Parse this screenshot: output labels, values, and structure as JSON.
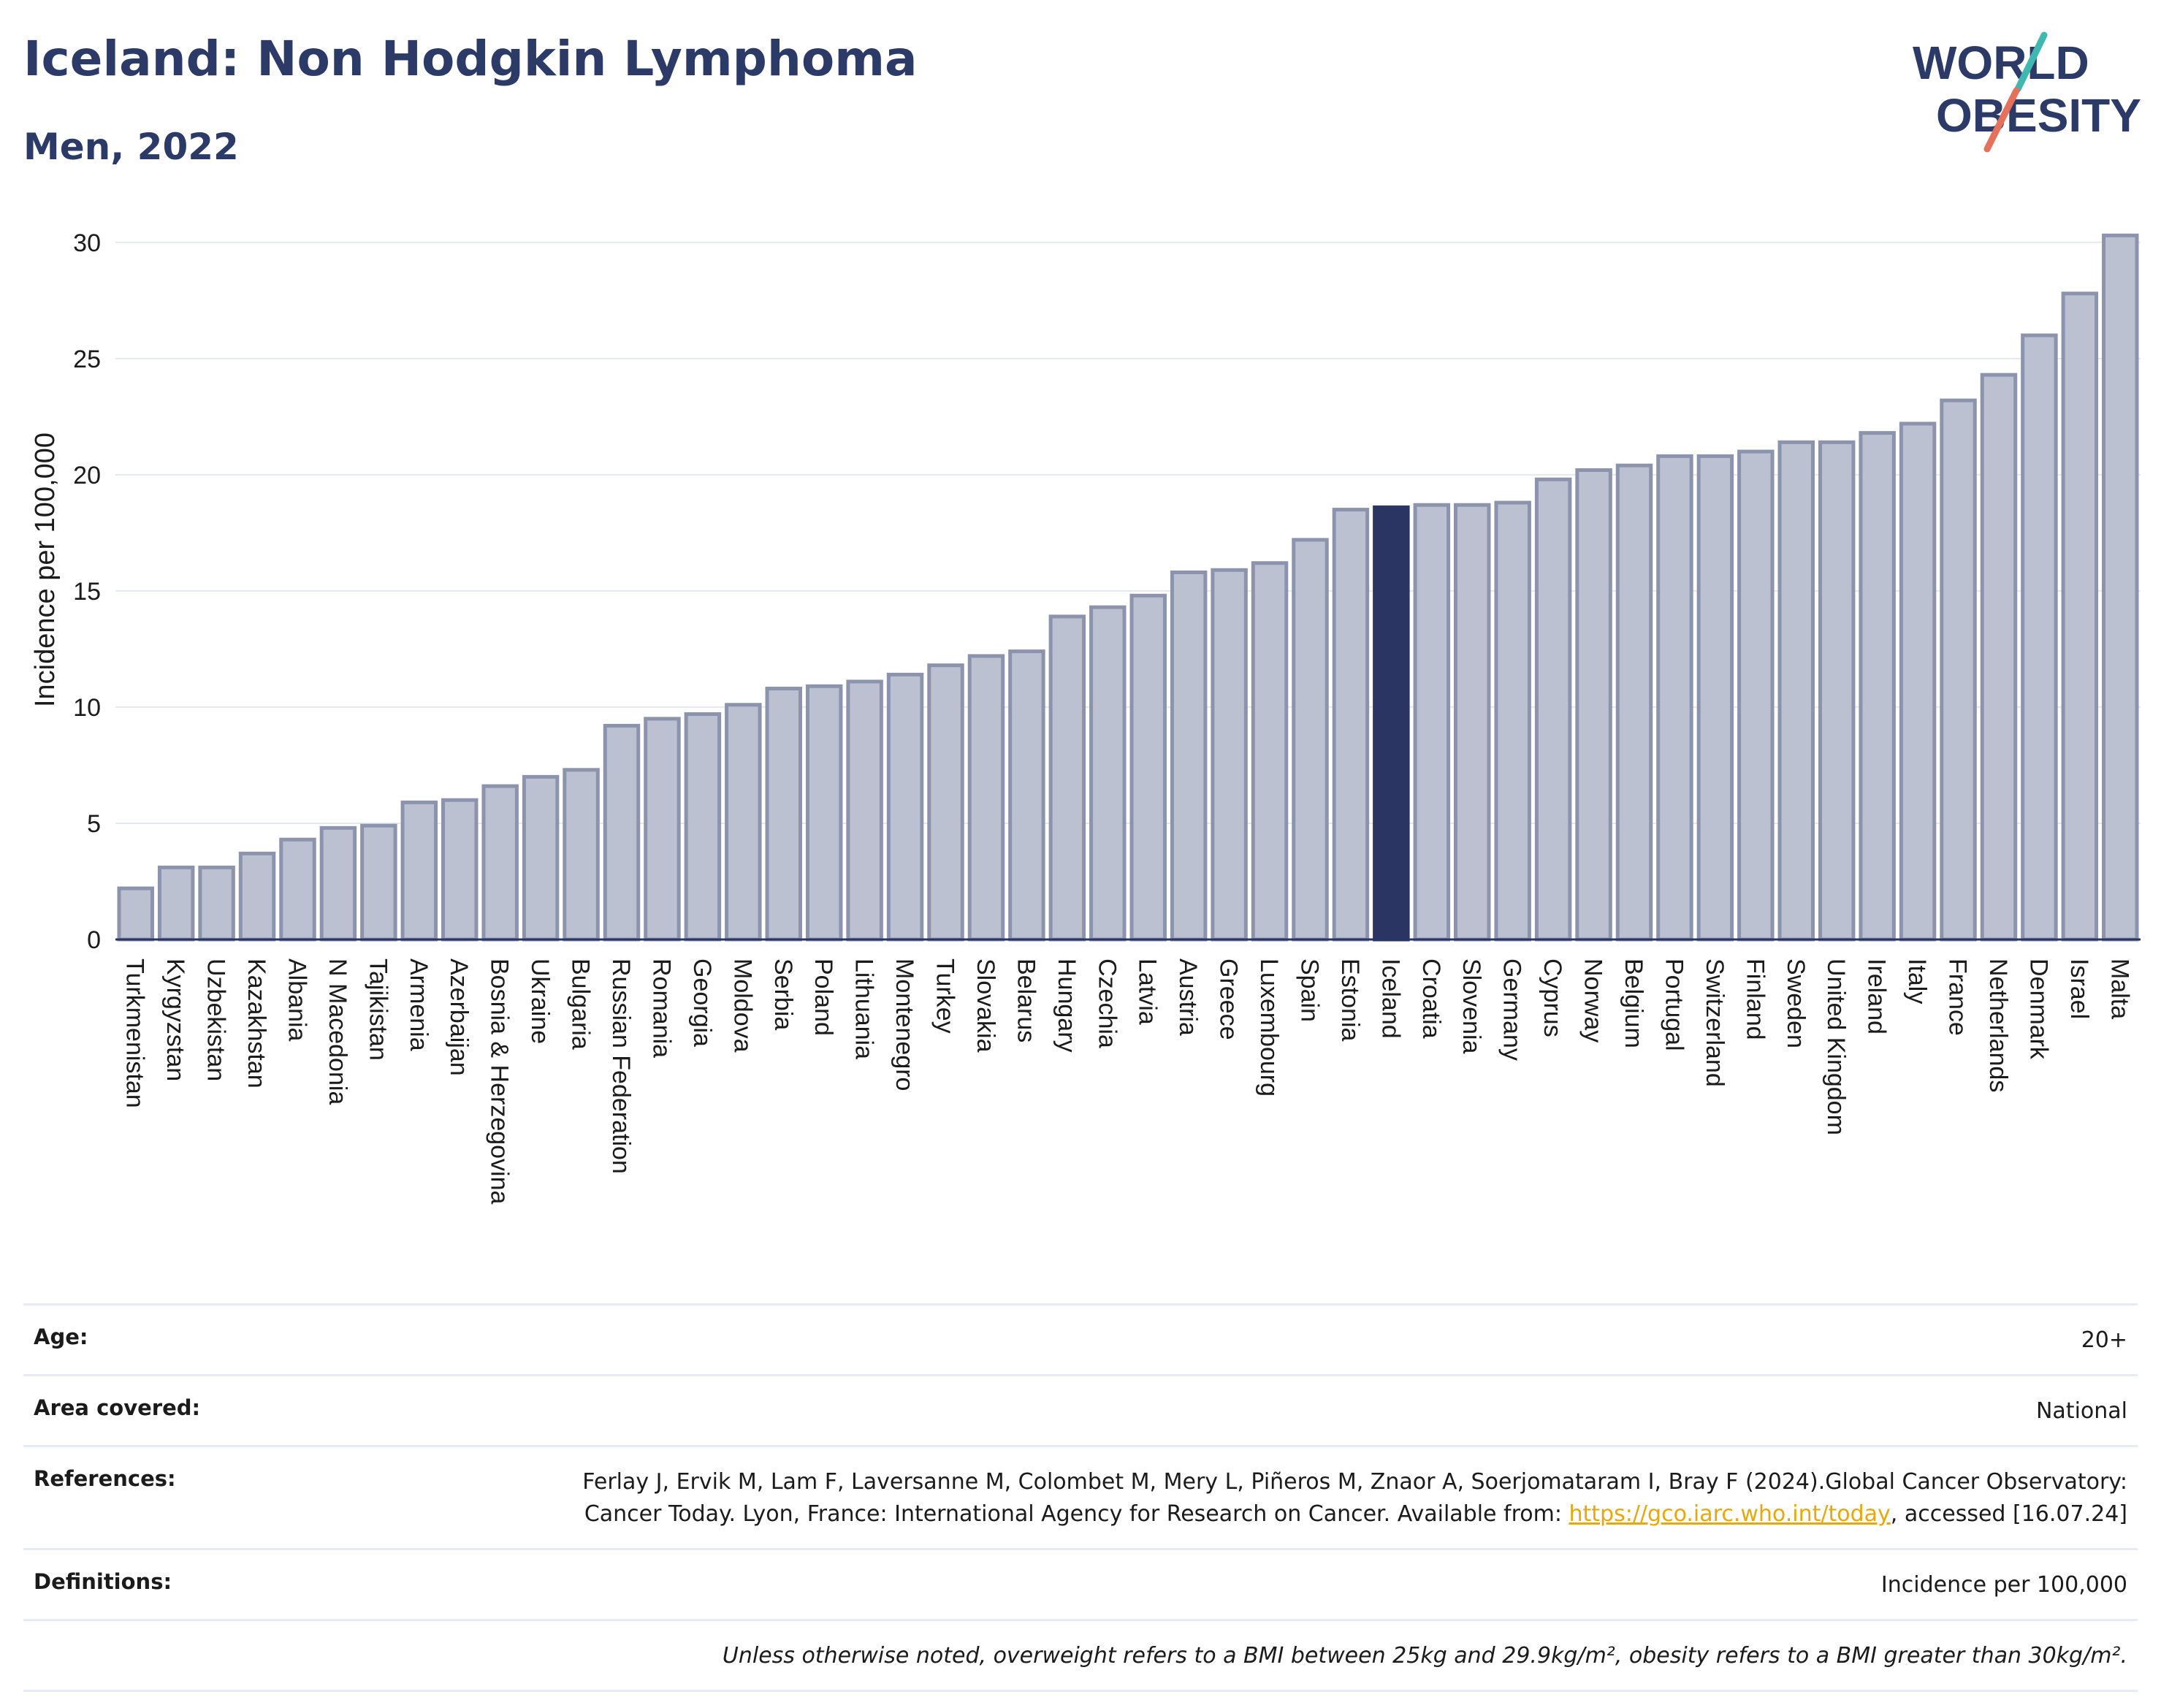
{
  "header": {
    "title": "Iceland: Non Hodgkin Lymphoma",
    "subtitle": "Men, 2022",
    "logo_line1": "WORLD",
    "logo_line2": "OBESITY"
  },
  "colors": {
    "highlight": "#2b3563",
    "bar": "#bcc1d1",
    "bar_border": "#8b93ad",
    "title": "#2b3a67",
    "link": "#e8a80c"
  },
  "chart_data": {
    "type": "bar",
    "title": "Iceland: Non Hodgkin Lymphoma",
    "subtitle": "Men, 2022",
    "xlabel": "",
    "ylabel": "Incidence per 100,000",
    "ylim": [
      0,
      31
    ],
    "yticks": [
      0,
      5,
      10,
      15,
      20,
      25,
      30
    ],
    "grid": true,
    "highlight": "Iceland",
    "categories": [
      "Turkmenistan",
      "Kyrgyzstan",
      "Uzbekistan",
      "Kazakhstan",
      "Albania",
      "N Macedonia",
      "Tajikistan",
      "Armenia",
      "Azerbaijan",
      "Bosnia & Herzegovina",
      "Ukraine",
      "Bulgaria",
      "Russian Federation",
      "Romania",
      "Georgia",
      "Moldova",
      "Serbia",
      "Poland",
      "Lithuania",
      "Montenegro",
      "Turkey",
      "Slovakia",
      "Belarus",
      "Hungary",
      "Czechia",
      "Latvia",
      "Austria",
      "Greece",
      "Luxembourg",
      "Spain",
      "Estonia",
      "Iceland",
      "Croatia",
      "Slovenia",
      "Germany",
      "Cyprus",
      "Norway",
      "Belgium",
      "Portugal",
      "Switzerland",
      "Finland",
      "Sweden",
      "United Kingdom",
      "Ireland",
      "Italy",
      "France",
      "Netherlands",
      "Denmark",
      "Israel",
      "Malta"
    ],
    "values": [
      2.2,
      3.1,
      3.1,
      3.7,
      4.3,
      4.8,
      4.9,
      5.9,
      6.0,
      6.6,
      7.0,
      7.3,
      9.2,
      9.5,
      9.7,
      10.1,
      10.8,
      10.9,
      11.1,
      11.4,
      11.8,
      12.2,
      12.4,
      13.9,
      14.3,
      14.8,
      15.8,
      15.9,
      16.2,
      17.2,
      18.5,
      18.6,
      18.7,
      18.7,
      18.8,
      19.8,
      20.2,
      20.4,
      20.8,
      20.8,
      21.0,
      21.4,
      21.4,
      21.8,
      22.2,
      23.2,
      24.3,
      26.0,
      27.8,
      30.3
    ]
  },
  "meta": {
    "rows": [
      {
        "label": "Age:",
        "value": "20+"
      },
      {
        "label": "Area covered:",
        "value": "National"
      },
      {
        "label": "References:",
        "value_pre": "Ferlay J, Ervik M, Lam F, Laversanne M, Colombet M, Mery L, Piñeros M, Znaor A, Soerjomataram I, Bray F (2024).Global Cancer Observatory: Cancer Today. Lyon, France: International Agency for Research on Cancer. Available from: ",
        "link": "https://gco.iarc.who.int/today",
        "value_post": ", accessed [16.07.24]"
      },
      {
        "label": "Definitions:",
        "value": "Incidence per 100,000"
      },
      {
        "label": "",
        "value": "Unless otherwise noted, overweight refers to a BMI between 25kg and 29.9kg/m², obesity refers to a BMI greater than 30kg/m²."
      }
    ]
  }
}
